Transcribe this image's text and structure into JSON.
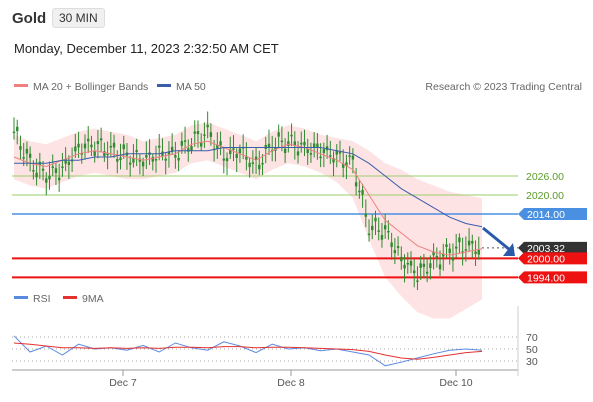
{
  "header": {
    "symbol": "Gold",
    "timeframe": "30 MIN",
    "datetime": "Monday, December 11, 2023 2:32:50 AM CET"
  },
  "legend": {
    "ma20_bb": "MA 20 + Bollinger Bands",
    "ma50": "MA 50",
    "credit": "Research © 2023 Trading Central",
    "rsi": "RSI",
    "ma9": "9MA"
  },
  "colors": {
    "ma20": "#f08080",
    "ma50": "#3a5ea8",
    "bb_fill": "#fde0e0",
    "candle": "#2e8b2e",
    "resistance": "#9acd6a",
    "pivot": "#4a90e2",
    "support": "#ee1111",
    "current": "#333333",
    "arrow": "#2a5aa8",
    "rsi": "#5a8ae0",
    "rsi_ma": "#e53030"
  },
  "chart_data": [
    {
      "type": "line",
      "title": "",
      "x_ticks": [
        "Dec 7",
        "Dec 8",
        "Dec 10"
      ],
      "series": [
        {
          "name": "MA 20 + Bollinger Bands",
          "values": [
            2032,
            2030,
            2029,
            2031,
            2033,
            2034,
            2033,
            2032,
            2031,
            2032,
            2033,
            2036,
            2037,
            2035,
            2033,
            2031,
            2034,
            2036,
            2035,
            2033,
            2031,
            2028,
            2020,
            2012,
            2008,
            2004,
            2002,
            2001,
            2002,
            2003
          ]
        },
        {
          "name": "MA 50",
          "values": [
            2030,
            2030,
            2030,
            2031,
            2031,
            2032,
            2032,
            2033,
            2033,
            2033,
            2034,
            2034,
            2034,
            2035,
            2035,
            2035,
            2035,
            2035,
            2035,
            2035,
            2034,
            2033,
            2030,
            2026,
            2022,
            2019,
            2016,
            2013,
            2011,
            2010
          ]
        }
      ],
      "price_series": [
        2040,
        2030,
        2026,
        2028,
        2035,
        2036,
        2034,
        2032,
        2031,
        2033,
        2033,
        2037,
        2040,
        2032,
        2034,
        2029,
        2036,
        2037,
        2035,
        2034,
        2032,
        2030,
        2010,
        2009,
        2000,
        1995,
        1999,
        2002,
        2004,
        2003
      ],
      "levels": [
        {
          "label": "2026.00",
          "value": 2026,
          "kind": "resistance"
        },
        {
          "label": "2020.00",
          "value": 2020,
          "kind": "resistance"
        },
        {
          "label": "2014.00",
          "value": 2014,
          "kind": "pivot"
        },
        {
          "label": "2003.32",
          "value": 2003.32,
          "kind": "current"
        },
        {
          "label": "2000.00",
          "value": 2000,
          "kind": "support"
        },
        {
          "label": "1994.00",
          "value": 1994,
          "kind": "support"
        }
      ],
      "ylim": [
        1990,
        2050
      ]
    },
    {
      "type": "line",
      "title": "",
      "y_ticks": [
        "70",
        "50",
        "30"
      ],
      "series": [
        {
          "name": "RSI",
          "values": [
            72,
            45,
            55,
            40,
            58,
            50,
            52,
            48,
            56,
            45,
            60,
            52,
            48,
            62,
            55,
            44,
            58,
            50,
            52,
            47,
            50,
            45,
            40,
            22,
            28,
            35,
            42,
            48,
            50,
            48
          ]
        },
        {
          "name": "9MA",
          "values": [
            60,
            58,
            55,
            52,
            52,
            51,
            52,
            51,
            52,
            51,
            53,
            53,
            52,
            54,
            54,
            52,
            53,
            53,
            52,
            51,
            50,
            49,
            46,
            40,
            35,
            33,
            36,
            40,
            44,
            46
          ]
        }
      ],
      "ylim": [
        0,
        100
      ]
    }
  ]
}
